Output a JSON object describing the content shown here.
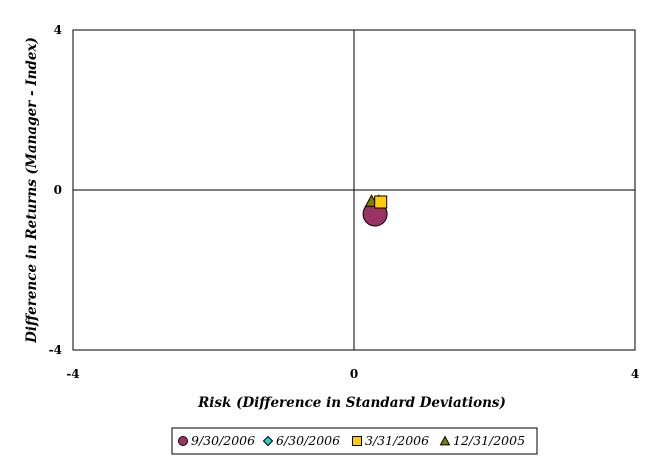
{
  "chart_data": {
    "type": "scatter",
    "title": "",
    "xlabel": "Risk (Difference in Standard Deviations)",
    "ylabel": "Difference in Returns (Manager - Index)",
    "xlim": [
      -4,
      4
    ],
    "ylim": [
      -4,
      4
    ],
    "x_ticks": [
      "-4",
      "0",
      "4"
    ],
    "y_ticks": [
      "4",
      "0",
      "-4"
    ],
    "grid": false,
    "legend_position": "bottom",
    "series": [
      {
        "name": "9/30/2006",
        "marker": "circle",
        "color": "#993366",
        "x": 0.3,
        "y": -0.6
      },
      {
        "name": "6/30/2006",
        "marker": "diamond",
        "color": "#33cccc",
        "x": 0.35,
        "y": -0.28
      },
      {
        "name": "3/31/2006",
        "marker": "square",
        "color": "#ffcc00",
        "x": 0.38,
        "y": -0.3
      },
      {
        "name": "12/31/2005",
        "marker": "triangle",
        "color": "#808000",
        "x": 0.25,
        "y": -0.28
      }
    ]
  }
}
